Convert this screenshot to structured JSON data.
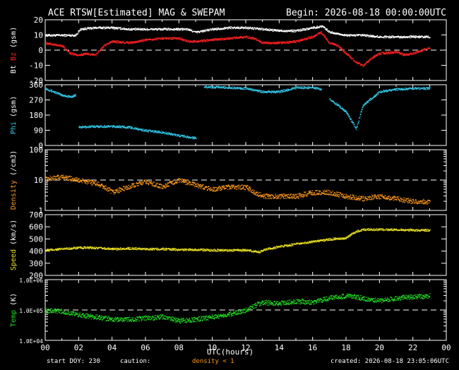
{
  "header": {
    "title": "ACE RTSW[Estimated] MAG & SWEPAM",
    "begin": "Begin: 2026-08-18 00:00:00UTC"
  },
  "footer": {
    "start_doy": "start DOY: 230",
    "caution": "caution:",
    "density_note": "density < 1",
    "created": "created: 2026-08-18 23:05:06UTC"
  },
  "colors": {
    "background": "#000000",
    "frame": "#ffffff",
    "bt": "#ffffff",
    "bz": "#ff2020",
    "phi": "#33c8e8",
    "density": "#ff9a1a",
    "speed": "#e8e020",
    "temp": "#22dd22",
    "caution": "#ff9a1a"
  },
  "chart_data": {
    "type": "scatter",
    "x_axis": {
      "label": "UTC(hours)",
      "range": [
        0,
        24
      ],
      "tick_labels": [
        "00",
        "02",
        "04",
        "06",
        "08",
        "10",
        "12",
        "14",
        "16",
        "18",
        "20",
        "22",
        "00"
      ]
    },
    "panels": [
      {
        "id": "mag",
        "ylabel_parts": [
          {
            "text": "Bt",
            "color": "#ffffff"
          },
          {
            "text": "Bz",
            "color": "#ff2020"
          },
          {
            "text": "(gsm)",
            "color": "#ffffff"
          }
        ],
        "ylim": [
          -20,
          20
        ],
        "scale": "linear",
        "ticks": [
          20,
          10,
          0,
          -10,
          -20
        ],
        "tick_labels": [
          "20",
          "10",
          "0",
          "-10",
          "-20"
        ],
        "dashed_ref": 0,
        "series": [
          {
            "color": "#ffffff",
            "points": [
              [
                0,
                10
              ],
              [
                1,
                10
              ],
              [
                1.8,
                10
              ],
              [
                2.1,
                14
              ],
              [
                3,
                15
              ],
              [
                4,
                15
              ],
              [
                5,
                14
              ],
              [
                6,
                14
              ],
              [
                7,
                14
              ],
              [
                8,
                14
              ],
              [
                8.5,
                14
              ],
              [
                9,
                12
              ],
              [
                10,
                14
              ],
              [
                11,
                15
              ],
              [
                12,
                15
              ],
              [
                13,
                14
              ],
              [
                14,
                13
              ],
              [
                15,
                13
              ],
              [
                16,
                15
              ],
              [
                16.6,
                16
              ],
              [
                17,
                12
              ],
              [
                18,
                10
              ],
              [
                19,
                10
              ],
              [
                20,
                9
              ],
              [
                21,
                9
              ],
              [
                22,
                9
              ],
              [
                23,
                9
              ]
            ]
          },
          {
            "color": "#ff2020",
            "points": [
              [
                0,
                5
              ],
              [
                0.5,
                4
              ],
              [
                1,
                3
              ],
              [
                1.5,
                -2
              ],
              [
                2,
                -3
              ],
              [
                2.5,
                -2
              ],
              [
                3,
                -3
              ],
              [
                3.5,
                3
              ],
              [
                4,
                6
              ],
              [
                5,
                5
              ],
              [
                6,
                7
              ],
              [
                7,
                8
              ],
              [
                8,
                8
              ],
              [
                8.5,
                6
              ],
              [
                9,
                6
              ],
              [
                10,
                7
              ],
              [
                11,
                8
              ],
              [
                12,
                9
              ],
              [
                12.5,
                8
              ],
              [
                13,
                5
              ],
              [
                14,
                5
              ],
              [
                15,
                6
              ],
              [
                16,
                9
              ],
              [
                16.5,
                12
              ],
              [
                17,
                5
              ],
              [
                17.5,
                3
              ],
              [
                18,
                -2
              ],
              [
                18.5,
                -7
              ],
              [
                19,
                -10
              ],
              [
                19.5,
                -5
              ],
              [
                20,
                -2
              ],
              [
                21,
                -1
              ],
              [
                21.5,
                -3
              ],
              [
                22,
                -2
              ],
              [
                23,
                2
              ]
            ]
          }
        ]
      },
      {
        "id": "phi",
        "ylabel_parts": [
          {
            "text": "Phi",
            "color": "#33c8e8"
          },
          {
            "text": "(gsm)",
            "color": "#ffffff"
          }
        ],
        "ylim": [
          0,
          360
        ],
        "scale": "linear",
        "ticks": [
          360,
          270,
          180,
          90,
          0
        ],
        "tick_labels": [
          "360",
          "270",
          "180",
          "90",
          "0"
        ],
        "series": [
          {
            "color": "#33c8e8",
            "segments": [
              [
                [
                  0,
                  340
                ],
                [
                  0.5,
                  320
                ],
                [
                  1,
                  300
                ],
                [
                  1.5,
                  290
                ],
                [
                  1.8,
                  300
                ]
              ],
              [
                [
                  2,
                  110
                ],
                [
                  3,
                  115
                ],
                [
                  4,
                  115
                ],
                [
                  5,
                  110
                ],
                [
                  6,
                  90
                ],
                [
                  7,
                  80
                ],
                [
                  8,
                  60
                ],
                [
                  9,
                  45
                ]
              ],
              [
                [
                  9.5,
                  350
                ],
                [
                  11,
                  345
                ],
                [
                  12,
                  340
                ],
                [
                  12.5,
                  330
                ],
                [
                  13,
                  320
                ],
                [
                  14,
                  320
                ],
                [
                  15,
                  345
                ],
                [
                  16,
                  345
                ],
                [
                  16.5,
                  335
                ]
              ],
              [
                [
                  17,
                  280
                ],
                [
                  18,
                  200
                ],
                [
                  18.6,
                  100
                ],
                [
                  19,
                  240
                ],
                [
                  20,
                  320
                ],
                [
                  21,
                  335
                ],
                [
                  22,
                  340
                ],
                [
                  23,
                  340
                ]
              ]
            ]
          }
        ]
      },
      {
        "id": "density",
        "ylabel_parts": [
          {
            "text": "Density",
            "color": "#ff9a1a"
          },
          {
            "text": "(/cm3)",
            "color": "#ffffff"
          }
        ],
        "ylim": [
          1,
          100
        ],
        "scale": "log",
        "ticks": [
          100,
          10,
          1
        ],
        "tick_labels": [
          "100",
          "10",
          "1"
        ],
        "dashed_ref": 10,
        "series": [
          {
            "color": "#ff9a1a",
            "points": [
              [
                0,
                11
              ],
              [
                1,
                13
              ],
              [
                2,
                10
              ],
              [
                3,
                8
              ],
              [
                4,
                4
              ],
              [
                5,
                6
              ],
              [
                6,
                9
              ],
              [
                7,
                6
              ],
              [
                8,
                10
              ],
              [
                9,
                7
              ],
              [
                10,
                5
              ],
              [
                11,
                6
              ],
              [
                12,
                6
              ],
              [
                12.5,
                4
              ],
              [
                13,
                3
              ],
              [
                14,
                3
              ],
              [
                15,
                3
              ],
              [
                16,
                4
              ],
              [
                17,
                4
              ],
              [
                18,
                3
              ],
              [
                19,
                2.5
              ],
              [
                20,
                3
              ],
              [
                21,
                2.5
              ],
              [
                22,
                2
              ],
              [
                23,
                2
              ]
            ]
          }
        ]
      },
      {
        "id": "speed",
        "ylabel_parts": [
          {
            "text": "Speed",
            "color": "#e8e020"
          },
          {
            "text": "(km/s)",
            "color": "#ffffff"
          }
        ],
        "ylim": [
          200,
          700
        ],
        "scale": "linear",
        "ticks": [
          700,
          600,
          500,
          400,
          300,
          200
        ],
        "tick_labels": [
          "700",
          "600",
          "500",
          "400",
          "300",
          "200"
        ],
        "series": [
          {
            "color": "#e8e020",
            "points": [
              [
                0,
                410
              ],
              [
                1,
                420
              ],
              [
                2,
                430
              ],
              [
                3,
                430
              ],
              [
                4,
                420
              ],
              [
                5,
                425
              ],
              [
                6,
                420
              ],
              [
                7,
                420
              ],
              [
                8,
                415
              ],
              [
                9,
                415
              ],
              [
                10,
                410
              ],
              [
                11,
                410
              ],
              [
                12,
                410
              ],
              [
                12.8,
                395
              ],
              [
                13,
                410
              ],
              [
                14,
                440
              ],
              [
                15,
                460
              ],
              [
                16,
                480
              ],
              [
                17,
                500
              ],
              [
                18,
                510
              ],
              [
                18.5,
                560
              ],
              [
                19,
                580
              ],
              [
                20,
                580
              ],
              [
                21,
                580
              ],
              [
                22,
                575
              ],
              [
                23,
                575
              ]
            ]
          }
        ]
      },
      {
        "id": "temp",
        "ylabel_parts": [
          {
            "text": "Temp",
            "color": "#22dd22"
          },
          {
            "text": "(K)",
            "color": "#ffffff"
          }
        ],
        "ylim": [
          10000,
          1000000
        ],
        "scale": "log",
        "ticks": [
          1000000,
          100000,
          10000
        ],
        "tick_labels": [
          "1.0E+06",
          "1.0E+05",
          "1.0E+04"
        ],
        "dashed_ref": 100000,
        "series": [
          {
            "color": "#22dd22",
            "points": [
              [
                0,
                100000
              ],
              [
                1,
                90000
              ],
              [
                2,
                70000
              ],
              [
                3,
                60000
              ],
              [
                4,
                50000
              ],
              [
                5,
                50000
              ],
              [
                6,
                55000
              ],
              [
                7,
                60000
              ],
              [
                8,
                45000
              ],
              [
                9,
                50000
              ],
              [
                10,
                60000
              ],
              [
                11,
                75000
              ],
              [
                12,
                100000
              ],
              [
                13,
                180000
              ],
              [
                14,
                170000
              ],
              [
                15,
                200000
              ],
              [
                16,
                180000
              ],
              [
                17,
                250000
              ],
              [
                18,
                300000
              ],
              [
                19,
                250000
              ],
              [
                20,
                200000
              ],
              [
                21,
                250000
              ],
              [
                22,
                280000
              ],
              [
                23,
                300000
              ]
            ]
          }
        ]
      }
    ]
  }
}
